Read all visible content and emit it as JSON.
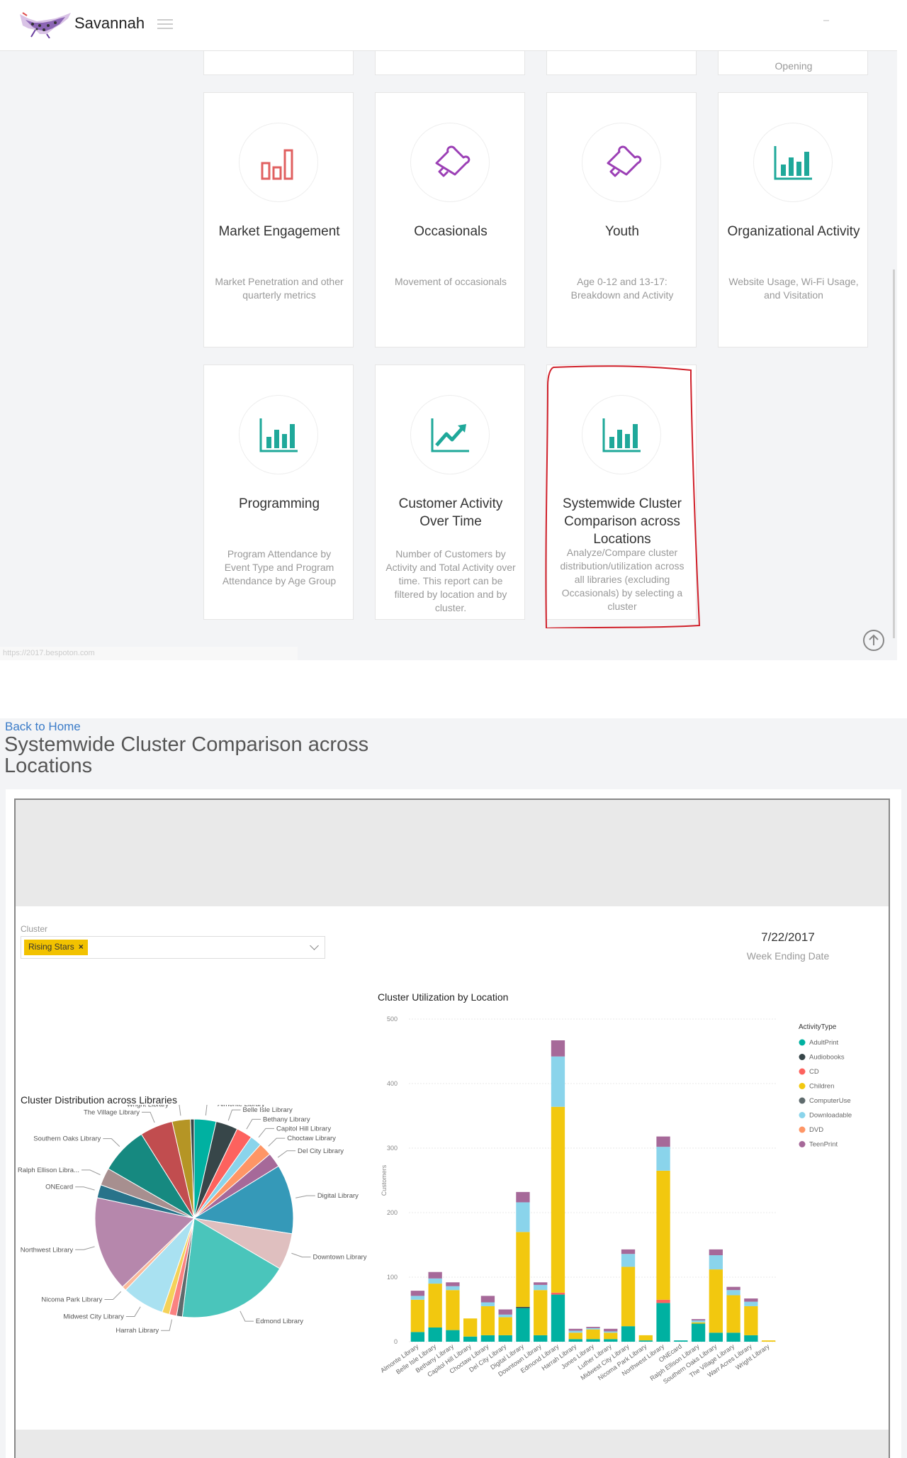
{
  "top_screen": {
    "brand": "Savannah",
    "partial_card_text": "Opening",
    "status_url": "https://2017.bespoton.com",
    "cards": [
      {
        "title": "Market Engagement",
        "desc": "Market Penetration and other quarterly metrics",
        "icon": "bar-chart-outline-icon"
      },
      {
        "title": "Occasionals",
        "desc": "Movement of occasionals",
        "icon": "puzzle-piece-icon"
      },
      {
        "title": "Youth",
        "desc": "Age 0-12 and 13-17: Breakdown and Activity",
        "icon": "puzzle-piece-icon"
      },
      {
        "title": "Organizational Activity",
        "desc": "Website Usage, Wi-Fi Usage, and Visitation",
        "icon": "bar-chart-icon"
      },
      {
        "title": "Programming",
        "desc": "Program Attendance by Event Type and Program Attendance by Age Group",
        "icon": "bar-chart-icon"
      },
      {
        "title": "Customer Activity Over Time",
        "desc": "Number of Customers by Activity and Total Activity over time. This report can be filtered by location and by cluster.",
        "icon": "trend-up-icon"
      },
      {
        "title": "Systemwide Cluster Comparison across Locations",
        "desc": "Analyze/Compare cluster distribution/utilization across all libraries (excluding Occasionals) by selecting a cluster",
        "icon": "bar-chart-icon"
      }
    ]
  },
  "report_screen": {
    "back_link": "Back to Home",
    "title": "Systemwide Cluster Comparison across Locations",
    "cluster_label": "Cluster",
    "cluster_value": "Rising Stars",
    "cluster_remove": "×",
    "date_value": "7/22/2017",
    "date_label": "Week Ending Date",
    "pie_title": "Cluster Distribution across Libraries",
    "bar_title": "Cluster Utilization by Location"
  },
  "colors": {
    "teal": "#00b1a1",
    "dark": "#374649",
    "red": "#fd625e",
    "yellow": "#f2c80f",
    "gray": "#5f6b6d",
    "lightblue": "#8ad4eb",
    "orange": "#fe9666",
    "purple": "#a66999"
  },
  "chart_data": [
    {
      "type": "pie",
      "title": "Cluster Distribution across Libraries",
      "slices": [
        {
          "label": "Almonte Library",
          "value": 3.0,
          "color": "#00b1a1"
        },
        {
          "label": "Belle Isle Library",
          "value": 3.0,
          "color": "#374649"
        },
        {
          "label": "Bethany Library",
          "value": 2.2,
          "color": "#fd625e"
        },
        {
          "label": "Capitol Hill Library",
          "value": 1.6,
          "color": "#8ad4eb"
        },
        {
          "label": "Choctaw Library",
          "value": 1.8,
          "color": "#fe9666"
        },
        {
          "label": "Del City Library",
          "value": 2.0,
          "color": "#a66999"
        },
        {
          "label": "Digital Library",
          "value": 9.5,
          "color": "#3599b8"
        },
        {
          "label": "Downtown Library",
          "value": 5.0,
          "color": "#dfbfbf"
        },
        {
          "label": "Edmond Library",
          "value": 15.5,
          "color": "#4ac5bb"
        },
        {
          "label": "",
          "value": 0.8,
          "color": "#5f6b6d"
        },
        {
          "label": "Harrah Library",
          "value": 1.0,
          "color": "#fb8281"
        },
        {
          "label": "",
          "value": 1.0,
          "color": "#f4d25a"
        },
        {
          "label": "Midwest City Library",
          "value": 5.8,
          "color": "#a9e1f1"
        },
        {
          "label": "Nicoma Park Library",
          "value": 0.6,
          "color": "#fbb99a"
        },
        {
          "label": "Northwest Library",
          "value": 13.0,
          "color": "#b687ac"
        },
        {
          "label": "ONEcard",
          "value": 1.8,
          "color": "#28738a"
        },
        {
          "label": "Ralph Ellison Libra...",
          "value": 2.4,
          "color": "#a78f8f"
        },
        {
          "label": "Southern Oaks Library",
          "value": 6.5,
          "color": "#168980"
        },
        {
          "label": "The Village Library",
          "value": 4.5,
          "color": "#c14d4f"
        },
        {
          "label": "Wright Library",
          "value": 2.5,
          "color": "#b59525"
        },
        {
          "label": "",
          "value": 0.5,
          "color": "#374649"
        }
      ]
    },
    {
      "type": "bar",
      "stacked": true,
      "title": "Cluster Utilization by Location",
      "ylabel": "Customers",
      "ylim": [
        0,
        500
      ],
      "yticks": [
        0,
        100,
        200,
        300,
        400,
        500
      ],
      "legend_title": "ActivityType",
      "categories": [
        "Almonte Library",
        "Belle Isle Library",
        "Bethany Library",
        "Capitol Hill Library",
        "Choctaw Library",
        "Del City Library",
        "Digital Library",
        "Downtown Library",
        "Edmond Library",
        "Harrah Library",
        "Jones Library",
        "Luther Library",
        "Midwest City Library",
        "Nicoma Park Library",
        "Northwest Library",
        "ONEcard",
        "Ralph Ellison Library",
        "Southern Oaks Library",
        "The Village Library",
        "Warr Acres Library",
        "Wright Library"
      ],
      "series": [
        {
          "name": "AdultPrint",
          "color": "#00b1a1",
          "values": [
            15,
            22,
            18,
            8,
            10,
            10,
            52,
            10,
            73,
            4,
            4,
            4,
            24,
            2,
            60,
            2,
            28,
            14,
            14,
            10,
            0
          ]
        },
        {
          "name": "Audiobooks",
          "color": "#374649",
          "values": [
            0,
            0,
            0,
            0,
            0,
            0,
            2,
            0,
            0,
            0,
            0,
            0,
            0,
            0,
            0,
            0,
            0,
            0,
            0,
            0,
            0
          ]
        },
        {
          "name": "CD",
          "color": "#fd625e",
          "values": [
            0,
            0,
            0,
            0,
            0,
            0,
            0,
            0,
            3,
            0,
            0,
            0,
            0,
            0,
            5,
            0,
            0,
            0,
            0,
            0,
            0
          ]
        },
        {
          "name": "Children",
          "color": "#f2c80f",
          "values": [
            50,
            68,
            62,
            28,
            45,
            28,
            116,
            70,
            288,
            10,
            15,
            10,
            92,
            8,
            200,
            0,
            2,
            98,
            58,
            45,
            2
          ]
        },
        {
          "name": "ComputerUse",
          "color": "#5f6b6d",
          "values": [
            0,
            0,
            0,
            0,
            0,
            0,
            0,
            0,
            0,
            0,
            0,
            0,
            0,
            0,
            0,
            0,
            0,
            0,
            0,
            0,
            0
          ]
        },
        {
          "name": "Downloadable",
          "color": "#8ad4eb",
          "values": [
            6,
            8,
            6,
            0,
            6,
            4,
            46,
            8,
            78,
            3,
            2,
            2,
            20,
            0,
            37,
            0,
            3,
            22,
            8,
            7,
            0
          ]
        },
        {
          "name": "DVD",
          "color": "#fe9666",
          "values": [
            0,
            0,
            0,
            0,
            0,
            0,
            0,
            0,
            0,
            0,
            0,
            0,
            0,
            0,
            0,
            0,
            0,
            0,
            0,
            0,
            0
          ]
        },
        {
          "name": "TeenPrint",
          "color": "#a66999",
          "values": [
            8,
            10,
            6,
            0,
            10,
            8,
            16,
            4,
            25,
            3,
            2,
            4,
            7,
            0,
            16,
            0,
            2,
            9,
            5,
            5,
            0
          ]
        }
      ]
    }
  ]
}
